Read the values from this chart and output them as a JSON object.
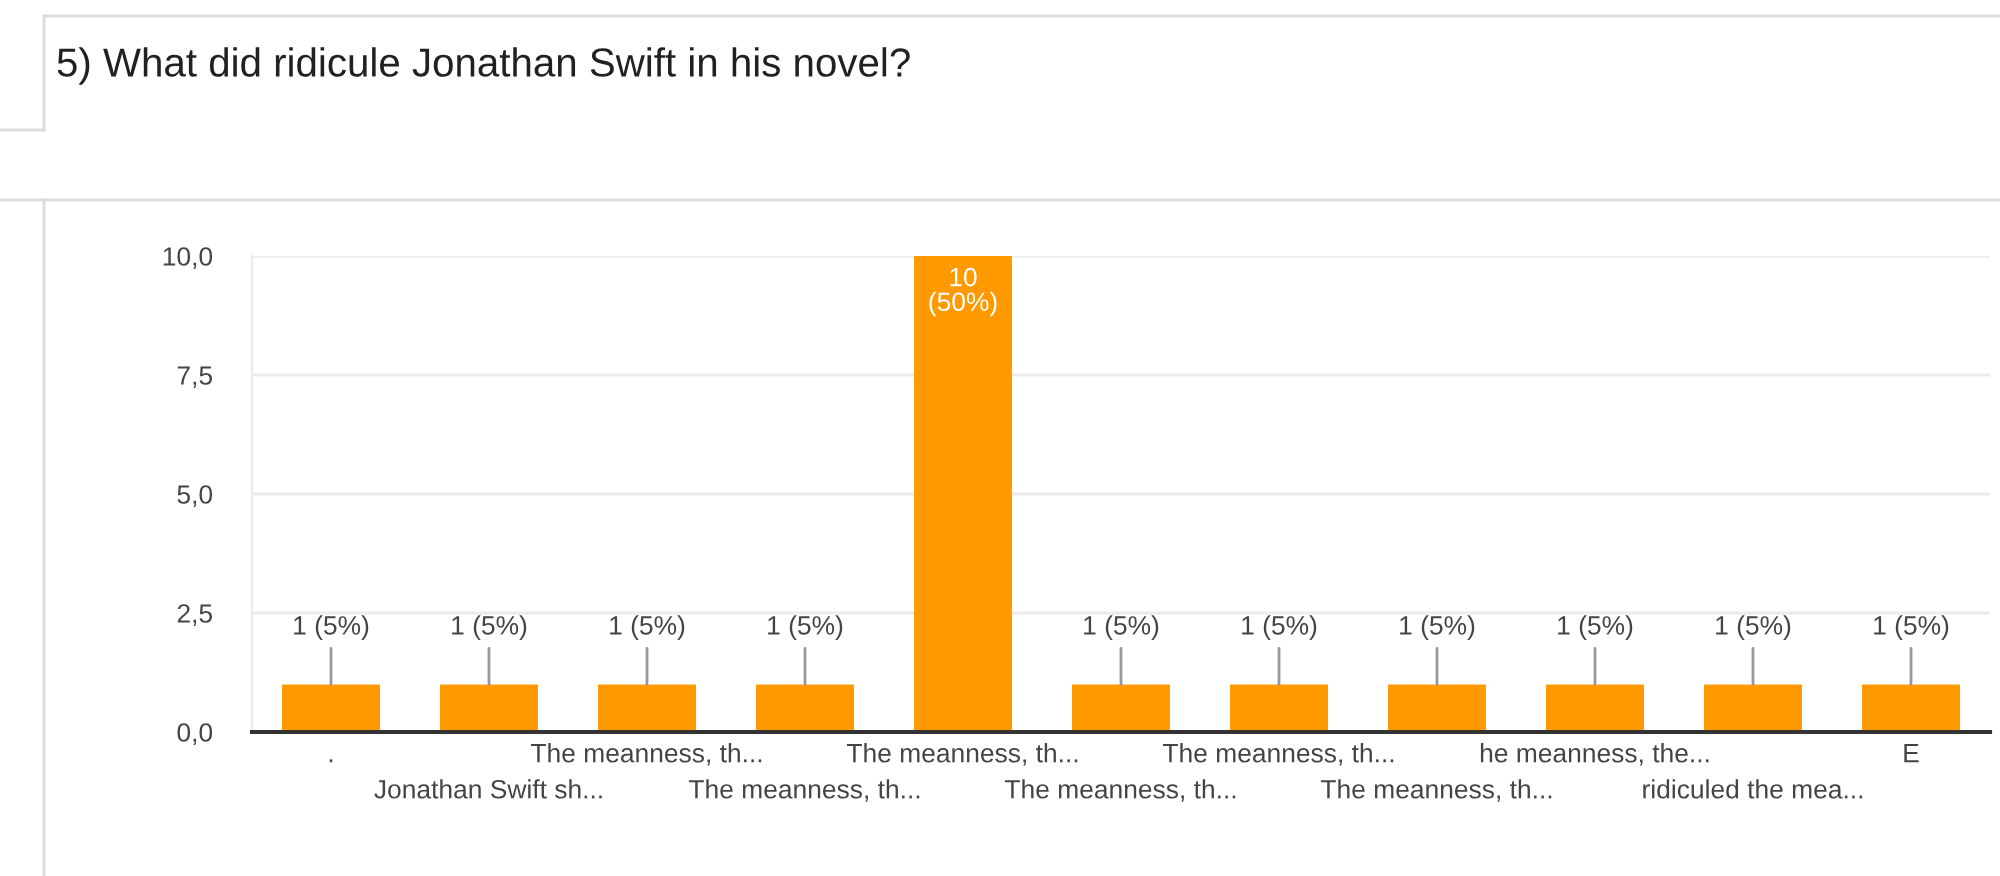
{
  "chart_data": {
    "type": "bar",
    "title": "5) What did ridicule Jonathan Swift in his novel?",
    "categories": [
      ".",
      "Jonathan Swift sh...",
      "The meanness, th...",
      "The meanness, th...",
      "The meanness, th...",
      "The meanness, th...",
      "The meanness, th...",
      "The meanness, th...",
      "he meanness, the...",
      "ridiculed the mea...",
      "E"
    ],
    "values": [
      1,
      1,
      1,
      1,
      10,
      1,
      1,
      1,
      1,
      1,
      1
    ],
    "value_labels": [
      "1 (5%)",
      "1 (5%)",
      "1 (5%)",
      "1 (5%)",
      "10\n(50%)",
      "1 (5%)",
      "1 (5%)",
      "1 (5%)",
      "1 (5%)",
      "1 (5%)",
      "1 (5%)"
    ],
    "color": "#ff9900",
    "ylim": [
      0,
      10
    ],
    "yticks": [
      {
        "value": 0,
        "label": "0,0"
      },
      {
        "value": 2.5,
        "label": "2,5"
      },
      {
        "value": 5,
        "label": "5,0"
      },
      {
        "value": 7.5,
        "label": "7,5"
      },
      {
        "value": 10,
        "label": "10,0"
      }
    ],
    "grid": "y"
  }
}
